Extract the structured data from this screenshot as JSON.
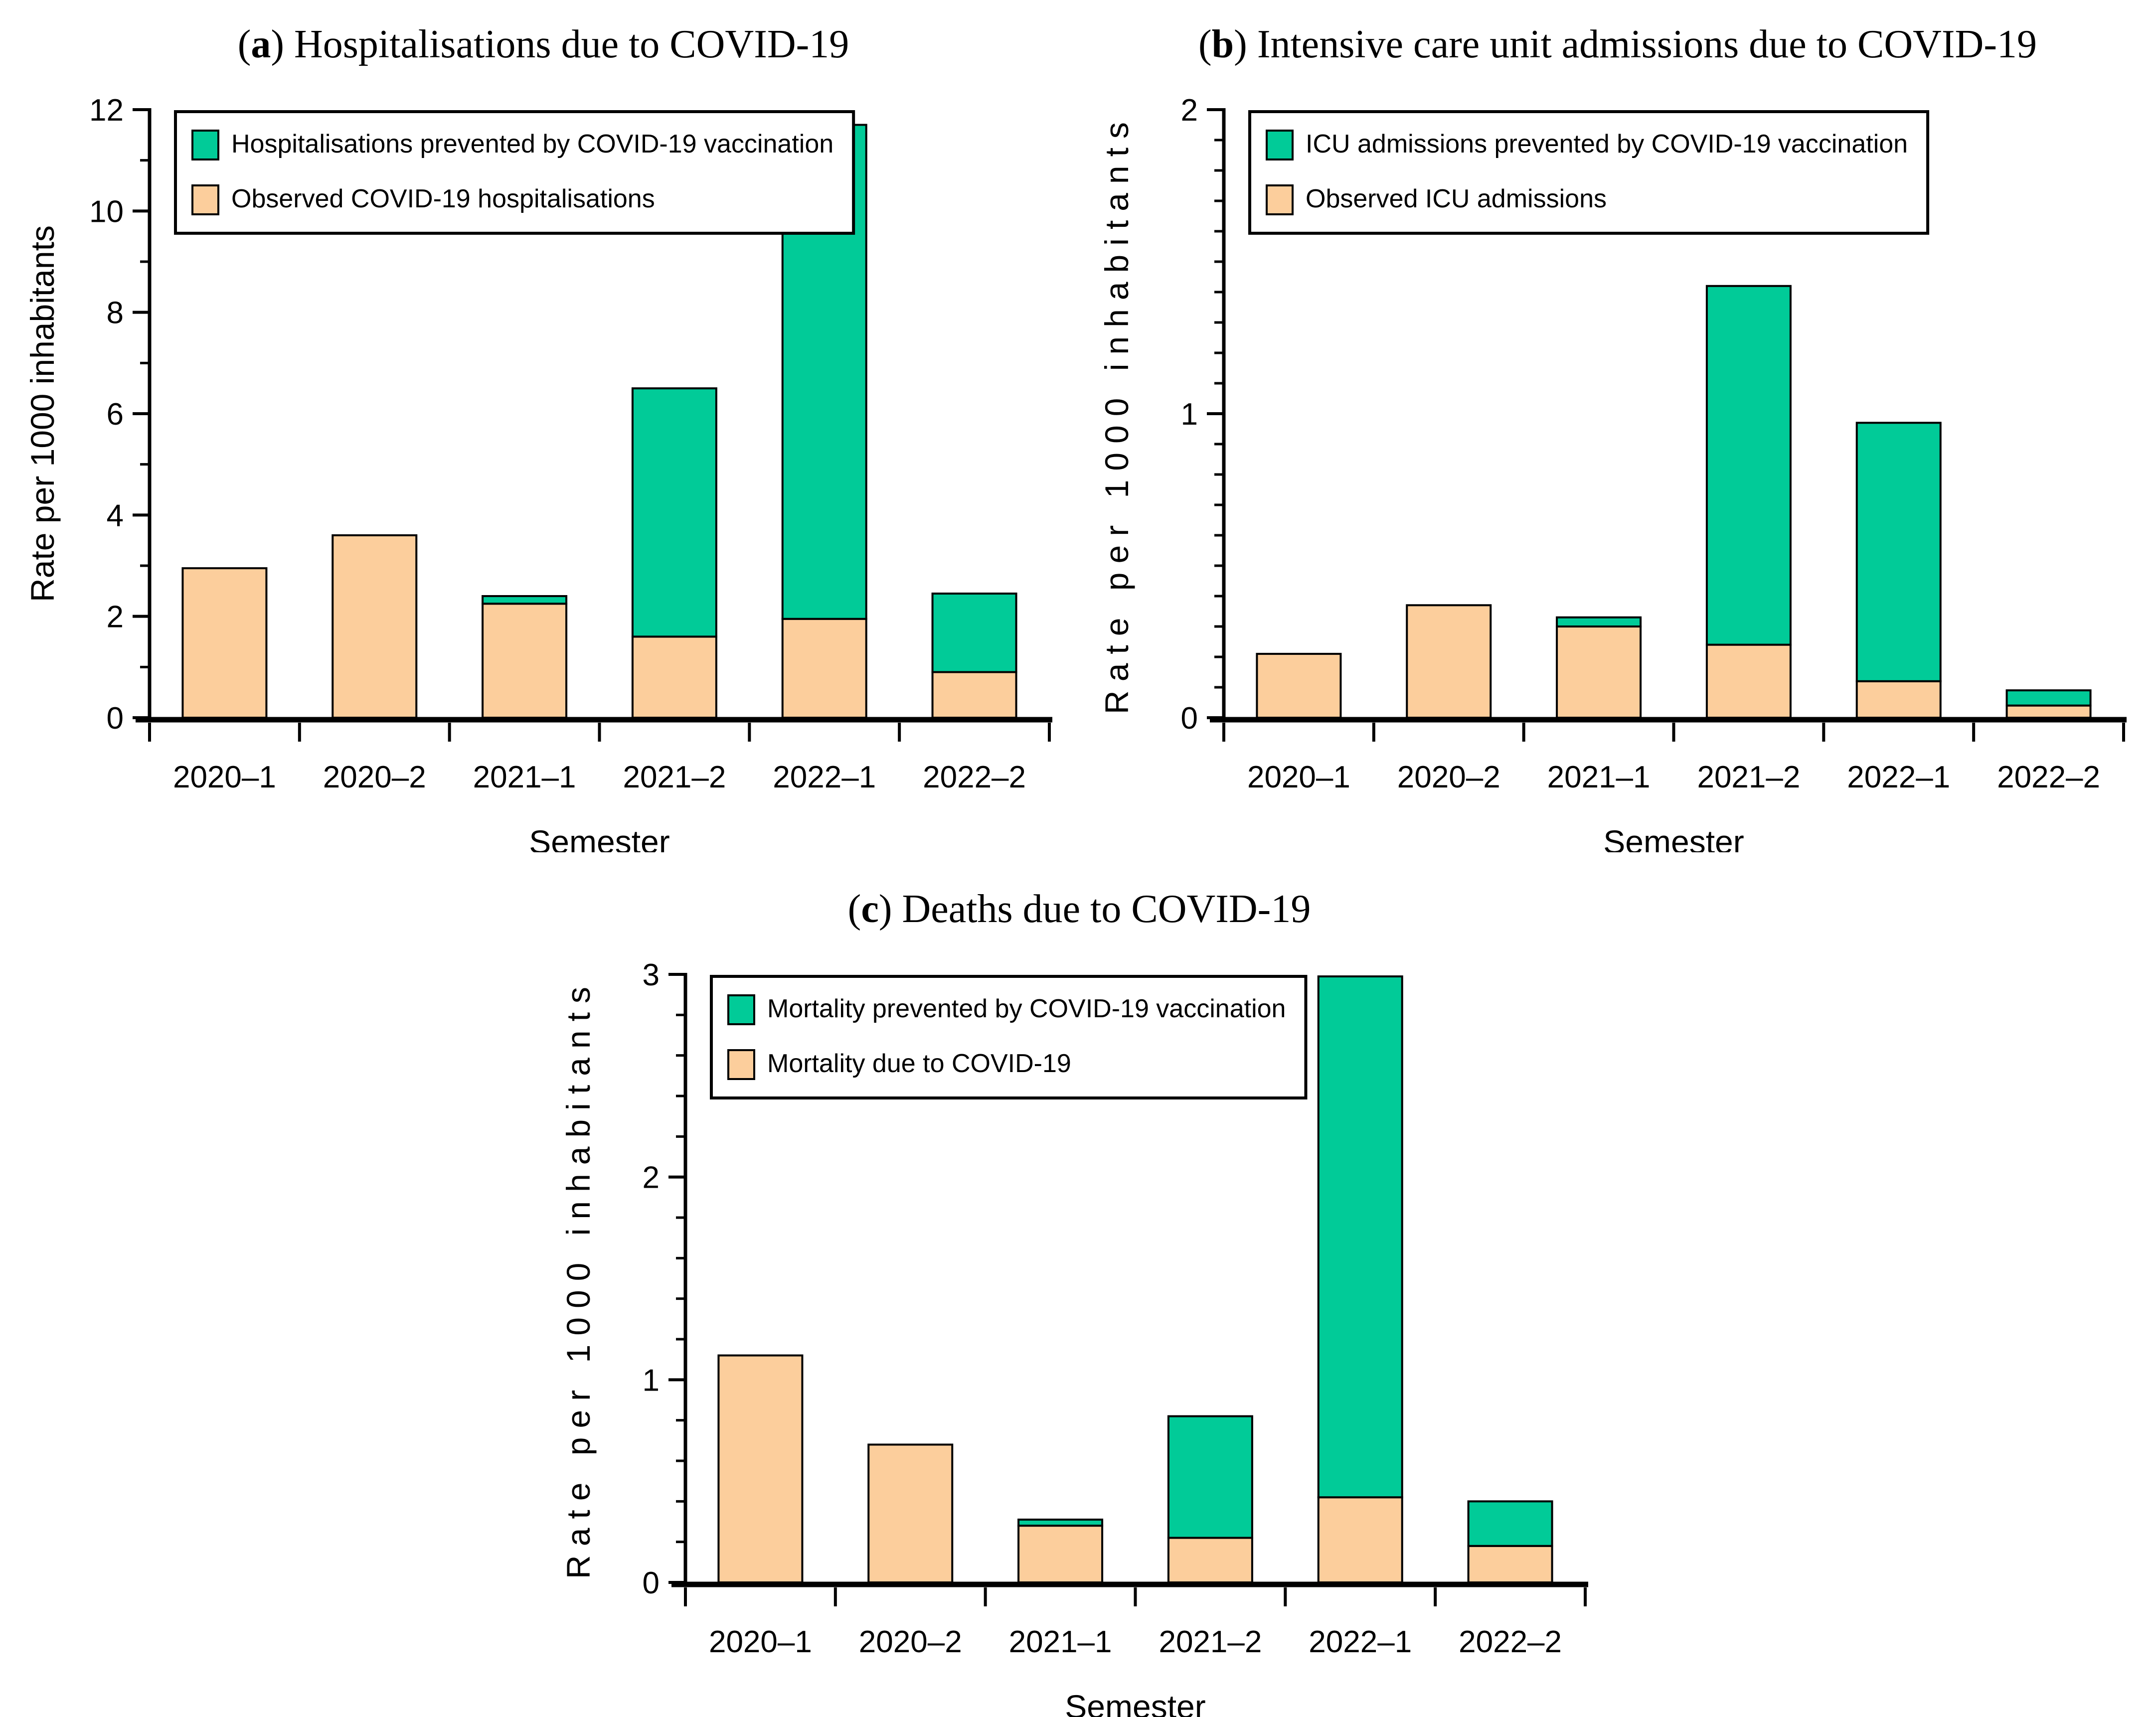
{
  "page": {
    "background": "#ffffff"
  },
  "colors": {
    "prevented_green": "#01CB98",
    "observed_orange": "#FCCE9C",
    "outline_black": "#000000",
    "axis_black": "#000000",
    "legend_bg": "#ffffff"
  },
  "shared": {
    "xlabel": "Semester",
    "ylabel": "Rate per 1000 inhabitants",
    "categories": [
      "2020–1",
      "2020–2",
      "2021–1",
      "2021–2",
      "2022–1",
      "2022–2"
    ]
  },
  "chart_data": [
    {
      "id": "a",
      "type": "bar",
      "stacked": true,
      "panel_letter": "a",
      "title": "Hospitalisations due to COVID-19",
      "categories": [
        "2020–1",
        "2020–2",
        "2021–1",
        "2021–2",
        "2022–1",
        "2022–2"
      ],
      "series": [
        {
          "key": "prevented",
          "name": "Hospitalisations prevented by COVID-19 vaccination",
          "color_key": "prevented_green",
          "values": [
            0,
            0,
            0.15,
            4.9,
            9.75,
            1.55
          ]
        },
        {
          "key": "observed",
          "name": "Observed COVID-19 hospitalisations",
          "color_key": "observed_orange",
          "values": [
            2.95,
            3.6,
            2.25,
            1.6,
            1.95,
            0.9
          ]
        }
      ],
      "stack_totals": [
        2.95,
        3.6,
        2.4,
        6.5,
        11.7,
        2.45
      ],
      "xlabel": "Semester",
      "ylabel": "Rate per 1000 inhabitants",
      "ylim": [
        0,
        12
      ],
      "y_major_step": 2,
      "y_minor_step": 1,
      "y_tick_labels": [
        "0",
        "2",
        "4",
        "6",
        "8",
        "10",
        "12"
      ],
      "legend_position": "top-left",
      "grid": false,
      "ylabel_letter_spaced": false
    },
    {
      "id": "b",
      "type": "bar",
      "stacked": true,
      "panel_letter": "b",
      "title": "Intensive care unit admissions due to COVID-19",
      "categories": [
        "2020–1",
        "2020–2",
        "2021–1",
        "2021–2",
        "2022–1",
        "2022–2"
      ],
      "series": [
        {
          "key": "prevented",
          "name": "ICU admissions prevented by COVID-19 vaccination",
          "color_key": "prevented_green",
          "values": [
            0,
            0,
            0.03,
            1.18,
            0.85,
            0.05
          ]
        },
        {
          "key": "observed",
          "name": "Observed ICU admissions",
          "color_key": "observed_orange",
          "values": [
            0.21,
            0.37,
            0.3,
            0.24,
            0.12,
            0.04
          ]
        }
      ],
      "stack_totals": [
        0.21,
        0.37,
        0.33,
        1.42,
        0.97,
        0.09
      ],
      "xlabel": "Semester",
      "ylabel": "Rate per 1000 inhabitants",
      "ylim": [
        0,
        2
      ],
      "y_major_step": 1,
      "y_minor_step": 0.1,
      "y_tick_labels": [
        "0",
        "1",
        "2"
      ],
      "legend_position": "top-left",
      "grid": false,
      "ylabel_letter_spaced": true
    },
    {
      "id": "c",
      "type": "bar",
      "stacked": true,
      "panel_letter": "c",
      "title": "Deaths due to COVID-19",
      "categories": [
        "2020–1",
        "2020–2",
        "2021–1",
        "2021–2",
        "2022–1",
        "2022–2"
      ],
      "series": [
        {
          "key": "prevented",
          "name": "Mortality prevented by COVID-19 vaccination",
          "color_key": "prevented_green",
          "values": [
            0,
            0,
            0.03,
            0.6,
            2.57,
            0.22
          ]
        },
        {
          "key": "observed",
          "name": "Mortality due to COVID-19",
          "color_key": "observed_orange",
          "values": [
            1.12,
            0.68,
            0.28,
            0.22,
            0.42,
            0.18
          ]
        }
      ],
      "stack_totals": [
        1.12,
        0.68,
        0.31,
        0.82,
        2.99,
        0.4
      ],
      "xlabel": "Semester",
      "ylabel": "Rate per 1000 inhabitants",
      "ylim": [
        0,
        3
      ],
      "y_major_step": 1,
      "y_minor_step": 0.2,
      "y_tick_labels": [
        "0",
        "1",
        "2",
        "3"
      ],
      "legend_position": "top-left",
      "grid": false,
      "ylabel_letter_spaced": true
    }
  ]
}
